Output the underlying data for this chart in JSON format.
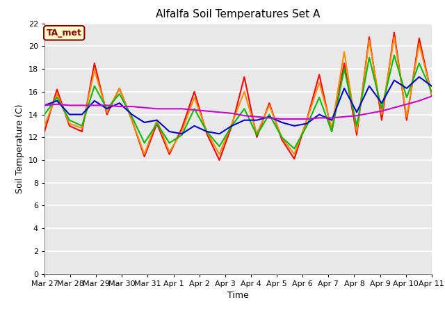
{
  "title": "Alfalfa Soil Temperatures Set A",
  "xlabel": "Time",
  "ylabel": "Soil Temperature (C)",
  "xlim_days": [
    0,
    15
  ],
  "ylim": [
    0,
    22
  ],
  "yticks": [
    0,
    2,
    4,
    6,
    8,
    10,
    12,
    14,
    16,
    18,
    20,
    22
  ],
  "xtick_labels": [
    "Mar 27",
    "Mar 28",
    "Mar 29",
    "Mar 30",
    "Mar 31",
    "Apr 1",
    "Apr 2",
    "Apr 3",
    "Apr 4",
    "Apr 5",
    "Apr 6",
    "Apr 7",
    "Apr 8",
    "Apr 9",
    "Apr 10",
    "Apr 11"
  ],
  "annotation_text": "TA_met",
  "annotation_color": "#8B0000",
  "annotation_bg": "#FFFFCC",
  "fig_bg_color": "#FFFFFF",
  "plot_bg_color": "#E8E8E8",
  "grid_color": "#FFFFFF",
  "series": {
    "neg2cm": {
      "color": "#FF0000",
      "linewidth": 1.5,
      "values": [
        12.5,
        16.2,
        13.0,
        12.5,
        18.5,
        14.0,
        16.3,
        13.5,
        10.3,
        13.2,
        10.5,
        12.8,
        16.0,
        12.3,
        10.0,
        13.0,
        17.3,
        12.0,
        15.0,
        11.8,
        10.1,
        13.5,
        17.5,
        12.5,
        18.5,
        12.2,
        20.8,
        13.5,
        21.2,
        13.5,
        20.7,
        15.7
      ]
    },
    "neg4cm": {
      "color": "#FF8C00",
      "linewidth": 1.5,
      "values": [
        13.0,
        15.8,
        13.2,
        12.8,
        17.9,
        14.2,
        16.3,
        13.5,
        10.5,
        13.5,
        10.7,
        12.5,
        15.5,
        12.5,
        10.5,
        13.2,
        16.0,
        12.3,
        14.8,
        12.0,
        10.5,
        13.5,
        16.8,
        12.8,
        19.5,
        12.5,
        20.5,
        14.0,
        20.8,
        13.8,
        20.2,
        15.8
      ]
    },
    "neg8cm": {
      "color": "#00BB00",
      "linewidth": 1.5,
      "values": [
        14.0,
        15.5,
        13.5,
        13.0,
        16.5,
        14.5,
        15.8,
        13.8,
        11.5,
        13.2,
        11.5,
        12.2,
        14.5,
        12.5,
        11.2,
        13.0,
        14.5,
        12.2,
        14.0,
        12.0,
        11.0,
        13.0,
        15.5,
        12.5,
        18.0,
        13.0,
        19.0,
        14.5,
        19.2,
        15.5,
        18.5,
        16.0
      ]
    },
    "neg16cm": {
      "color": "#0000CC",
      "linewidth": 1.5,
      "values": [
        14.8,
        15.2,
        14.0,
        14.0,
        15.2,
        14.5,
        15.0,
        14.0,
        13.3,
        13.5,
        12.5,
        12.3,
        13.0,
        12.5,
        12.3,
        13.0,
        13.5,
        13.5,
        13.8,
        13.3,
        13.0,
        13.2,
        14.0,
        13.5,
        16.3,
        14.2,
        16.5,
        15.0,
        17.0,
        16.3,
        17.3,
        16.5
      ]
    },
    "neg32cm": {
      "color": "#CC00CC",
      "linewidth": 1.5,
      "values": [
        14.8,
        14.9,
        14.8,
        14.8,
        14.8,
        14.8,
        14.7,
        14.7,
        14.6,
        14.5,
        14.5,
        14.5,
        14.4,
        14.3,
        14.2,
        14.1,
        13.9,
        13.8,
        13.7,
        13.6,
        13.6,
        13.6,
        13.7,
        13.7,
        13.8,
        13.9,
        14.1,
        14.3,
        14.6,
        14.9,
        15.2,
        15.6
      ]
    }
  }
}
